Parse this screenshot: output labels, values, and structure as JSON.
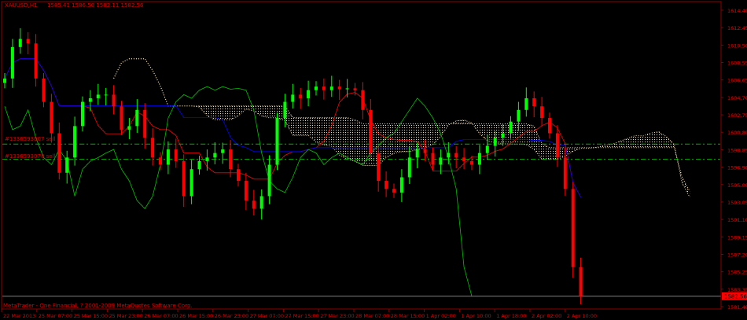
{
  "header": {
    "symbol": "XAUUSD,H1",
    "ohlc": "1585.41 1586.50 1582.11 1582.56"
  },
  "footer": {
    "copyright": "MetaTrader - One Financial, ? 2001-2009 MetaQuotes Software Corp."
  },
  "orders": [
    {
      "label": "#1336593007 sell",
      "price": 1599.5
    },
    {
      "label": "#1336593078 sell",
      "price": 1597.8
    }
  ],
  "current_price": {
    "label": "1582.56",
    "value": 1582.56
  },
  "colors": {
    "background": "#000000",
    "frame": "#8b0000",
    "text": "#e00000",
    "bull": "#00ff00",
    "bear": "#ff0000",
    "tenkan": "#ff0000",
    "kijun": "#0000ff",
    "chikou": "#00c000",
    "cloud": "#f5deb3",
    "order_line": "#00b000",
    "price_line": "#808080"
  },
  "chart_data": {
    "type": "candlestick",
    "title": "XAUUSD,H1",
    "indicators": [
      "Ichimoku Kinko Hyo"
    ],
    "grid": false,
    "ylim": [
      1581.4,
      1614.4
    ],
    "y_ticks": [
      "1614.40",
      "1612.45",
      "1610.50",
      "1608.55",
      "1606.65",
      "1604.70",
      "1602.75",
      "1600.80",
      "1598.85",
      "1596.90",
      "1595.00",
      "1593.05",
      "1591.10",
      "1589.15",
      "1587.20",
      "1585.25",
      "1583.35",
      "1581.40"
    ],
    "x_ticks": [
      "22 Mar 2013",
      "25 Mar 07:00",
      "25 Mar 15:00",
      "25 Mar 23:00",
      "26 Mar 07:00",
      "26 Mar 15:00",
      "26 Mar 23:00",
      "27 Mar 07:00",
      "27 Mar 15:00",
      "27 Mar 23:00",
      "28 Mar 07:00",
      "28 Mar 15:00",
      "1 Apr 02:00",
      "1 Apr 10:00",
      "1 Apr 18:00",
      "2 Apr 02:00",
      "2 Apr 10:00"
    ],
    "closes": [
      1606.8,
      1610.3,
      1611.2,
      1610.7,
      1606.8,
      1604.2,
      1600.7,
      1596.3,
      1598.0,
      1601.5,
      1604.2,
      1604.6,
      1605.0,
      1605.0,
      1603.7,
      1601.1,
      1601.5,
      1603.3,
      1600.2,
      1598.0,
      1597.2,
      1598.9,
      1597.6,
      1593.7,
      1596.7,
      1597.6,
      1598.0,
      1598.5,
      1598.9,
      1596.7,
      1595.4,
      1593.2,
      1592.3,
      1593.7,
      1597.2,
      1602.4,
      1604.2,
      1605.0,
      1604.6,
      1605.5,
      1605.9,
      1605.5,
      1605.9,
      1605.6,
      1605.7,
      1605.5,
      1603.3,
      1598.5,
      1595.4,
      1594.5,
      1594.1,
      1595.8,
      1598.0,
      1598.9,
      1598.5,
      1597.2,
      1598.0,
      1598.5,
      1598.0,
      1597.6,
      1597.2,
      1598.5,
      1599.3,
      1600.2,
      1600.7,
      1602.0,
      1603.3,
      1604.6,
      1603.7,
      1602.4,
      1600.7,
      1598.0,
      1594.5,
      1585.8,
      1582.56
    ]
  }
}
